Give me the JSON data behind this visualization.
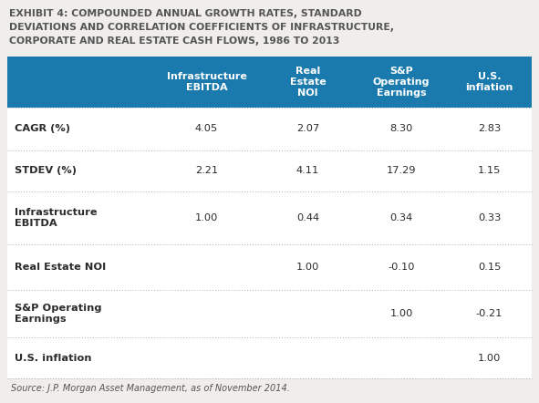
{
  "title_line1": "EXHIBIT 4: COMPOUNDED ANNUAL GROWTH RATES, STANDARD",
  "title_line2": "DEVIATIONS AND CORRELATION COEFFICIENTS OF INFRASTRUCTURE,",
  "title_line3": "CORPORATE AND REAL ESTATE CASH FLOWS, 1986 TO 2013",
  "header_bg_color": "#1a7aad",
  "header_text_color": "#ffffff",
  "col_headers": [
    "Infrastructure\nEBITDA",
    "Real\nEstate\nNOI",
    "S&P\nOperating\nEarnings",
    "U.S.\ninflation"
  ],
  "row_labels": [
    "CAGR (%)",
    "STDEV (%)",
    "Infrastructure\nEBITDA",
    "Real Estate NOI",
    "S&P Operating\nEarnings",
    "U.S. inflation"
  ],
  "table_data": [
    [
      "4.05",
      "2.07",
      "8.30",
      "2.83"
    ],
    [
      "2.21",
      "4.11",
      "17.29",
      "1.15"
    ],
    [
      "1.00",
      "0.44",
      "0.34",
      "0.33"
    ],
    [
      "",
      "1.00",
      "-0.10",
      "0.15"
    ],
    [
      "",
      "",
      "1.00",
      "-0.21"
    ],
    [
      "",
      "",
      "",
      "1.00"
    ]
  ],
  "source_text": "Source: J.P. Morgan Asset Management, as of November 2014.",
  "bg_color": "#ffffff",
  "row_label_color": "#2b2b2b",
  "data_color": "#2b2b2b",
  "title_color": "#555555",
  "separator_color": "#b0b0b0",
  "fig_bg_color": "#f0eeeb",
  "table_bg_color": "#ffffff"
}
